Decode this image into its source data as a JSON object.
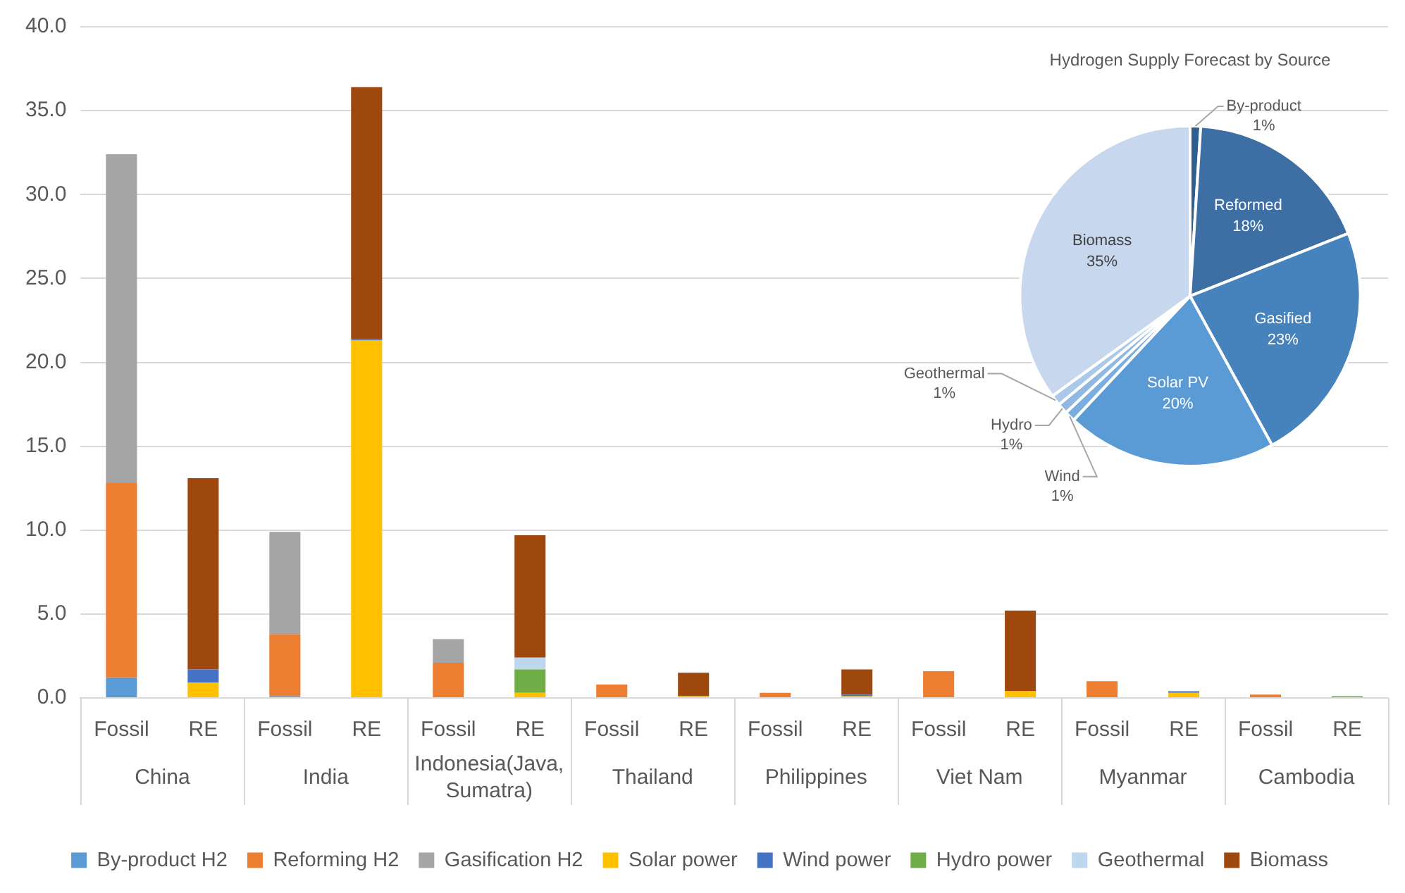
{
  "chart_data": [
    {
      "type": "bar",
      "stacked": true,
      "categories": [
        "Fossil",
        "RE",
        "Fossil",
        "RE",
        "Fossil",
        "RE",
        "Fossil",
        "RE",
        "Fossil",
        "RE",
        "Fossil",
        "RE",
        "Fossil",
        "RE",
        "Fossil",
        "RE"
      ],
      "series": [
        {
          "name": "By-product H2",
          "color": "#5b9bd5",
          "values": [
            1.2,
            0,
            0.1,
            0,
            0,
            0,
            0,
            0,
            0,
            0,
            0,
            0,
            0,
            0,
            0,
            0
          ]
        },
        {
          "name": "Reforming H2",
          "color": "#ed7d31",
          "values": [
            11.6,
            0,
            3.7,
            0,
            2.1,
            0,
            0.8,
            0,
            0.3,
            0,
            1.6,
            0,
            1.0,
            0,
            0.2,
            0
          ]
        },
        {
          "name": "Gasification H2",
          "color": "#a5a5a5",
          "values": [
            19.6,
            0,
            6.1,
            0,
            1.4,
            0,
            0,
            0,
            0,
            0,
            0,
            0,
            0,
            0,
            0,
            0
          ]
        },
        {
          "name": "Solar power",
          "color": "#ffc000",
          "values": [
            0,
            0.9,
            0,
            21.3,
            0,
            0.3,
            0,
            0.1,
            0,
            0.1,
            0,
            0.4,
            0,
            0.3,
            0,
            0
          ]
        },
        {
          "name": "Wind power",
          "color": "#4472c4",
          "values": [
            0,
            0.8,
            0,
            0.1,
            0,
            0,
            0,
            0,
            0,
            0.1,
            0,
            0,
            0,
            0.1,
            0,
            0
          ]
        },
        {
          "name": "Hydro power",
          "color": "#70ad47",
          "values": [
            0,
            0,
            0,
            0,
            0,
            1.4,
            0,
            0,
            0,
            0,
            0,
            0,
            0,
            0,
            0,
            0.1
          ]
        },
        {
          "name": "Geothermal",
          "color": "#bdd7ee",
          "values": [
            0,
            0,
            0,
            0,
            0,
            0.7,
            0,
            0,
            0,
            0,
            0,
            0,
            0,
            0,
            0,
            0
          ]
        },
        {
          "name": "Biomass",
          "color": "#9e480e",
          "values": [
            0,
            11.4,
            0,
            15.0,
            0,
            7.3,
            0,
            1.4,
            0,
            1.5,
            0,
            4.8,
            0,
            0,
            0,
            0
          ]
        }
      ],
      "ylim": [
        0,
        40
      ],
      "yticks": [
        {
          "value": 0,
          "label": "0.0"
        },
        {
          "value": 5,
          "label": "5.0"
        },
        {
          "value": 10,
          "label": "10.0"
        },
        {
          "value": 15,
          "label": "15.0"
        },
        {
          "value": 20,
          "label": "20.0"
        },
        {
          "value": 25,
          "label": "25.0"
        },
        {
          "value": 30,
          "label": "30.0"
        },
        {
          "value": 35,
          "label": "35.0"
        },
        {
          "value": 40,
          "label": "40.0"
        }
      ],
      "grid": "y",
      "legend": "bottom",
      "annotations": [
        "China",
        "India",
        "Indonesia(Java, Sumatra)",
        "Thailand",
        "Philippines",
        "Viet Nam",
        "Myanmar",
        "Cambodia"
      ]
    },
    {
      "type": "pie",
      "title": "Hydrogen Supply Forecast by Source",
      "categories": [
        "By-product",
        "Reformed",
        "Gasified",
        "Solar PV",
        "Wind",
        "Hydro",
        "Geothermal",
        "Biomass"
      ],
      "values": [
        1,
        18,
        23,
        20,
        1,
        1,
        1,
        35
      ],
      "colors": [
        "#2f5f8e",
        "#3d6fa5",
        "#4682bc",
        "#5b9bd5",
        "#7aaee0",
        "#8fb8e3",
        "#a9c8ea",
        "#c7d8ee"
      ],
      "value_labels": [
        "1%",
        "18%",
        "23%",
        "20%",
        "1%",
        "1%",
        "1%",
        "35%"
      ]
    }
  ]
}
